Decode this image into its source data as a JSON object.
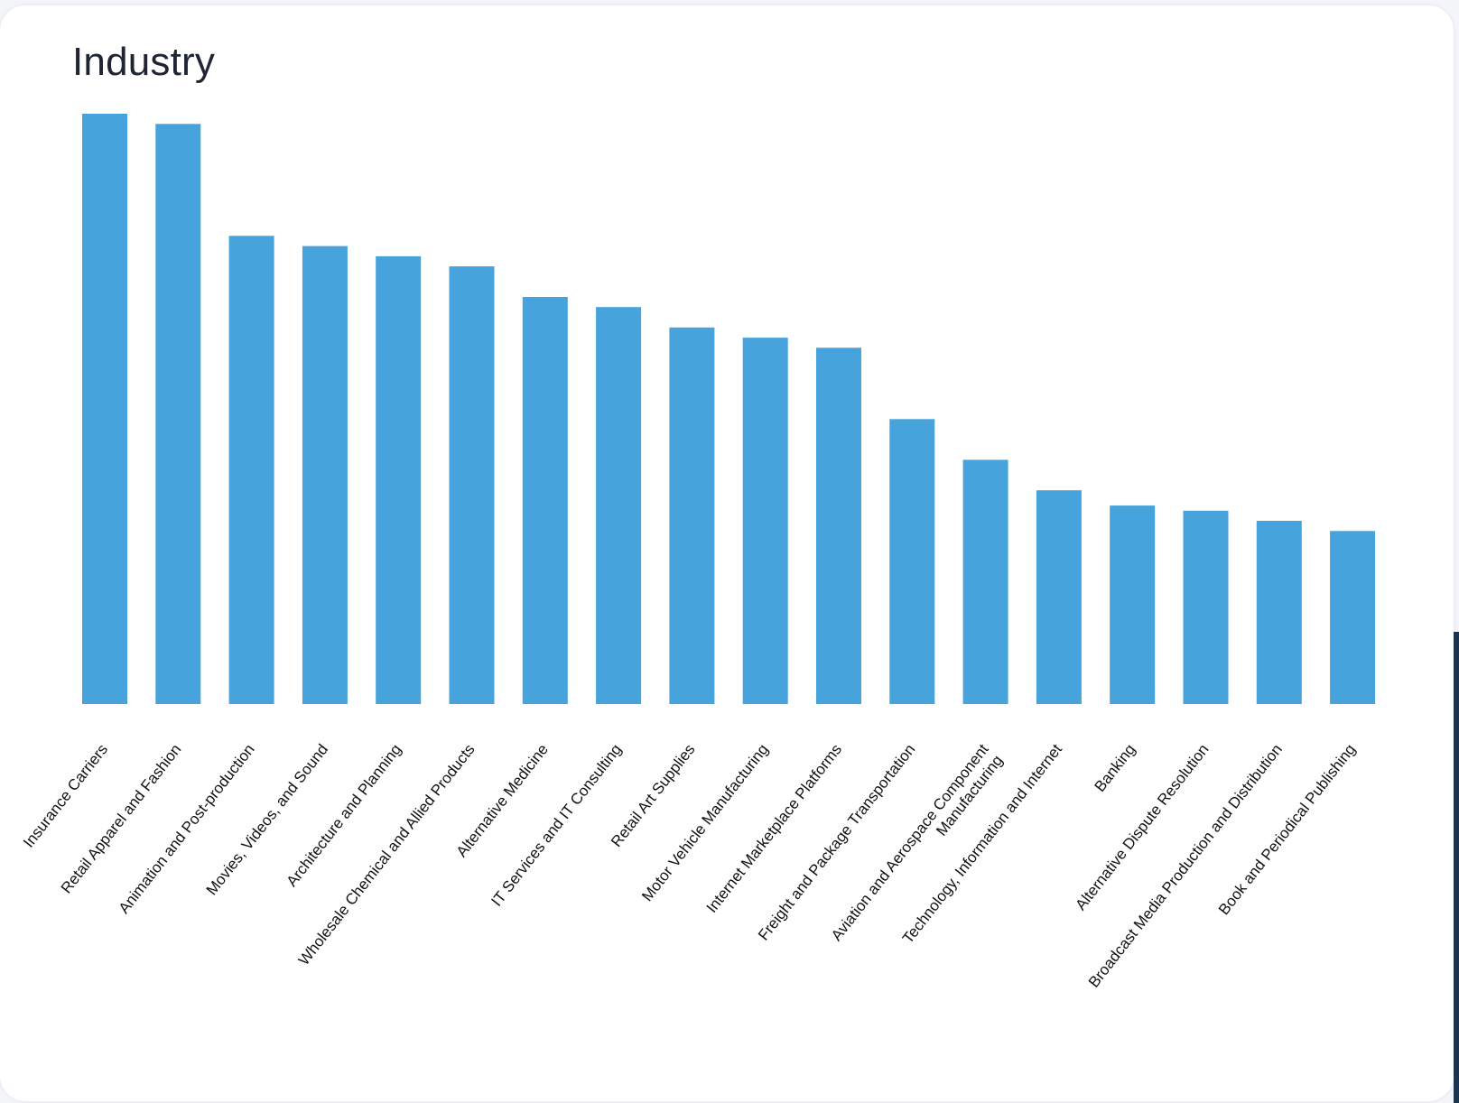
{
  "title": "Industry",
  "colors": {
    "bar": "#47a3db",
    "background": "#ffffff",
    "title": "#1f2532"
  },
  "chart_data": {
    "type": "bar",
    "title": "Industry",
    "xlabel": "",
    "ylabel": "",
    "grid": false,
    "ylim": [
      0,
      100
    ],
    "categories": [
      [
        "Insurance Carriers"
      ],
      [
        "Retail Apparel and Fashion"
      ],
      [
        "Animation and Post-production"
      ],
      [
        "Movies, Videos, and Sound"
      ],
      [
        "Architecture and Planning"
      ],
      [
        "Wholesale Chemical and Allied Products"
      ],
      [
        "Alternative Medicine"
      ],
      [
        "IT Services and IT Consulting"
      ],
      [
        "Retail Art Supplies"
      ],
      [
        "Motor Vehicle Manufacturing"
      ],
      [
        "Internet Marketplace Platforms"
      ],
      [
        "Freight and Package Transportation"
      ],
      [
        "Aviation and Aerospace Component",
        "Manufacturing"
      ],
      [
        "Technology, Information and Internet"
      ],
      [
        "Banking"
      ],
      [
        "Alternative Dispute Resolution"
      ],
      [
        "Broadcast Media Production and Distribution"
      ],
      [
        "Book and Periodical Publishing"
      ]
    ],
    "values": [
      58,
      57,
      46,
      45,
      44,
      43,
      40,
      39,
      37,
      36,
      35,
      28,
      24,
      21,
      19.5,
      19,
      18,
      17
    ]
  }
}
